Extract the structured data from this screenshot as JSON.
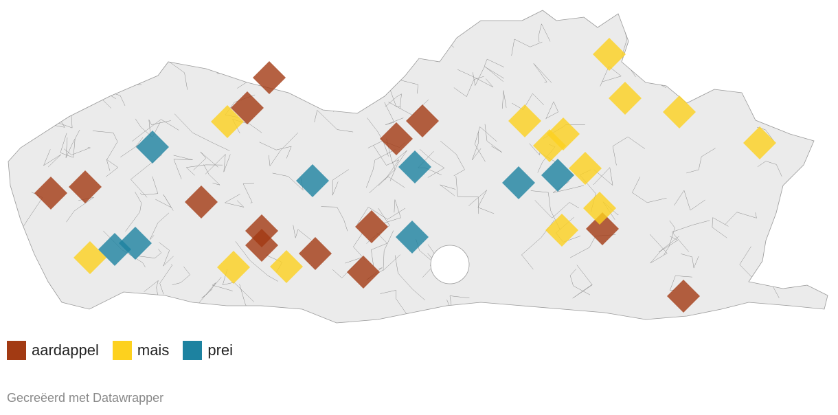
{
  "legend": [
    {
      "label": "aardappel",
      "color": "#a23a13"
    },
    {
      "label": "mais",
      "color": "#fdd11e"
    },
    {
      "label": "prei",
      "color": "#1d82a0"
    }
  ],
  "map": {
    "land_color": "#ebebeb",
    "border_color": "#555555",
    "marker_shape": "diamond",
    "marker_opacity": 0.8,
    "marker_counts": {
      "aardappel": 14,
      "mais": 14,
      "prei": 8
    }
  },
  "credit": "Gecreëerd met Datawrapper"
}
